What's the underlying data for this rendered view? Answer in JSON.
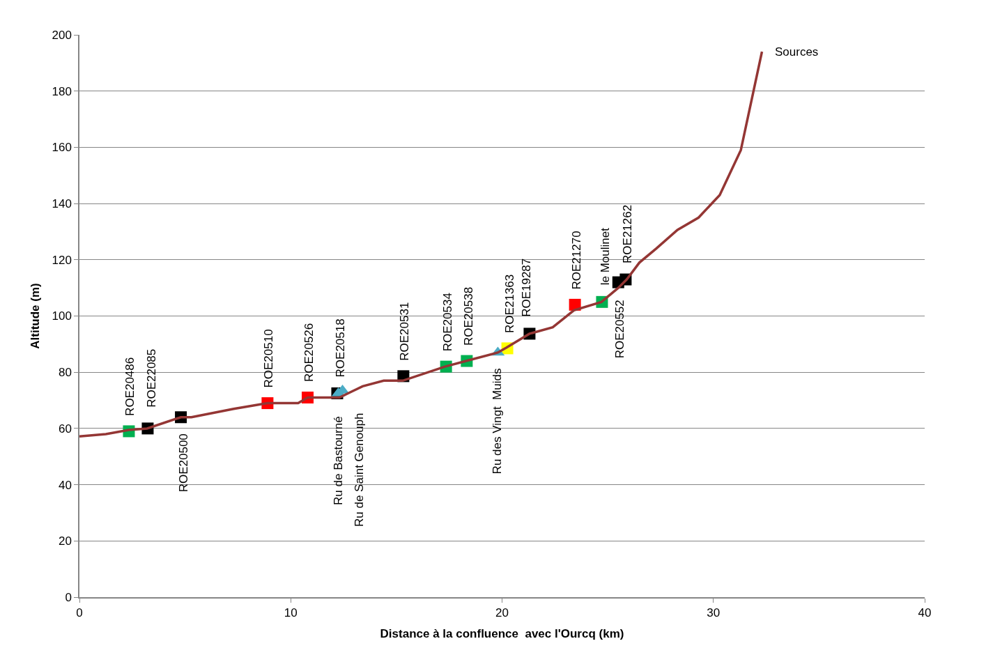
{
  "chart_data": {
    "type": "line",
    "xlabel": "Distance à la confluence  avec l'Ourcq (km)",
    "ylabel": "Altitude (m)",
    "xlim": [
      0,
      40
    ],
    "xticks": [
      0,
      10,
      20,
      30,
      40
    ],
    "ylim": [
      0,
      200
    ],
    "yticks": [
      0,
      20,
      40,
      60,
      80,
      100,
      120,
      140,
      160,
      180,
      200
    ],
    "grid": "y",
    "series": [
      {
        "color": "#943634",
        "marker": "none",
        "line_style": "solid",
        "x": [
          0,
          1.25,
          2.34,
          3.2,
          4.8,
          5.3,
          7.3,
          8.9,
          10.35,
          10.8,
          12.3,
          13.4,
          14.4,
          15.3,
          17.3,
          18.3,
          19.8,
          20.2,
          21.3,
          22.4,
          23.4,
          24.7,
          25.5,
          25.9,
          26.5,
          27.3,
          28.3,
          29.3,
          30.3,
          31.3,
          32.3
        ],
        "values": [
          57.2,
          58,
          59.5,
          60,
          64,
          64,
          67,
          69,
          69,
          71,
          71,
          75,
          77,
          77,
          82,
          84,
          87,
          88.7,
          93.7,
          96,
          102,
          105,
          110,
          113,
          119,
          124,
          130.6,
          135,
          143,
          159,
          194
        ]
      },
      {
        "type": "scatter",
        "marker": "square",
        "x": [
          2.34,
          3.23,
          4.8,
          8.9,
          10.8,
          12.2,
          15.33,
          17.35,
          18.33,
          20.25,
          21.3,
          23.45,
          24.73,
          25.5,
          25.85
        ],
        "values": [
          59,
          60,
          64,
          69,
          71,
          72.5,
          78.6,
          82,
          84,
          88.5,
          93.7,
          104,
          105,
          112,
          113
        ],
        "colors": [
          "#00b050",
          "#000000",
          "#000000",
          "#ff0000",
          "#ff0000",
          "#000000",
          "#000000",
          "#00b050",
          "#00b050",
          "#ffff00",
          "#000000",
          "#ff0000",
          "#00b050",
          "#000000",
          "#000000"
        ]
      },
      {
        "type": "scatter",
        "marker": "triangle",
        "color": "#4bacc6",
        "x": [
          12.25,
          12.45,
          19.8
        ],
        "values": [
          72.5,
          73.5,
          87
        ]
      }
    ],
    "annotations": [
      {
        "text": "ROE20486",
        "x": 2.34,
        "y": 59
      },
      {
        "text": "ROE22085",
        "x": 3.23,
        "y": 60
      },
      {
        "text": "ROE20500",
        "x": 4.8,
        "y": 64
      },
      {
        "text": "ROE20510",
        "x": 8.9,
        "y": 69
      },
      {
        "text": "ROE20526",
        "x": 10.8,
        "y": 71
      },
      {
        "text": "ROE20518",
        "x": 12.2,
        "y": 72.5
      },
      {
        "text": "Ru de Bastourné",
        "x": 12.25,
        "y": 72.5
      },
      {
        "text": "Ru de Saint Genouph",
        "x": 12.45,
        "y": 73.5
      },
      {
        "text": "ROE20531",
        "x": 15.33,
        "y": 78.6
      },
      {
        "text": "ROE20534",
        "x": 17.35,
        "y": 82
      },
      {
        "text": "ROE20538",
        "x": 18.33,
        "y": 84
      },
      {
        "text": "Ru des Vingt  Muids",
        "x": 19.8,
        "y": 87
      },
      {
        "text": "ROE21363",
        "x": 20.25,
        "y": 88.5
      },
      {
        "text": "ROE19287",
        "x": 21.3,
        "y": 93.7
      },
      {
        "text": "ROE21270",
        "x": 23.45,
        "y": 104
      },
      {
        "text": "le Moulinet",
        "x": 24.73,
        "y": 105
      },
      {
        "text": "ROE20552",
        "x": 25.5,
        "y": 112
      },
      {
        "text": "ROE21262",
        "x": 25.85,
        "y": 113
      },
      {
        "text": "Sources",
        "x": 32.3,
        "y": 194
      }
    ]
  }
}
